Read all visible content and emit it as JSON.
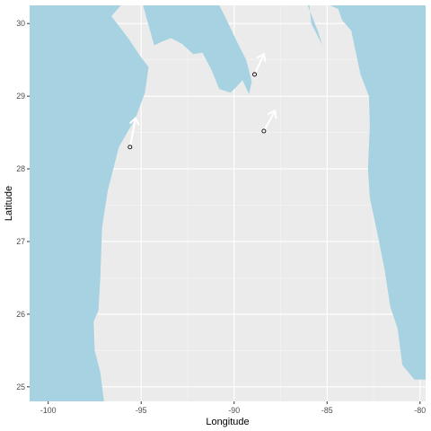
{
  "chart_data": {
    "type": "scatter",
    "title": "",
    "xlabel": "Longitude",
    "ylabel": "Latitude",
    "xlim": [
      -101,
      -79.7
    ],
    "ylim": [
      24.8,
      30.25
    ],
    "x_ticks": [
      -100,
      -95,
      -90,
      -85,
      -80
    ],
    "y_ticks": [
      25,
      26,
      27,
      28,
      29,
      30
    ],
    "x_tick_labels": [
      "-100",
      "-95",
      "-90",
      "-85",
      "-80"
    ],
    "y_tick_labels": [
      "25",
      "26",
      "27",
      "28",
      "29",
      "30"
    ],
    "grid": true,
    "legend": "none",
    "series": [
      {
        "points": [
          {
            "lon": -95.6,
            "lat": 28.3
          },
          {
            "lon": -88.9,
            "lat": 29.3
          },
          {
            "lon": -88.4,
            "lat": 28.52
          }
        ],
        "vectors": [
          {
            "lon_end": -95.3,
            "lat_end": 28.7
          },
          {
            "lon_end": -88.4,
            "lat_end": 29.58
          },
          {
            "lon_end": -87.8,
            "lat_end": 28.8
          }
        ]
      }
    ],
    "land_regions": [
      [
        [
          -101.0,
          30.25
        ],
        [
          -96.1,
          30.25
        ],
        [
          -96.6,
          30.1
        ],
        [
          -95.7,
          29.8
        ],
        [
          -95.05,
          29.55
        ],
        [
          -94.6,
          29.4
        ],
        [
          -94.8,
          29.05
        ],
        [
          -95.3,
          28.7
        ],
        [
          -96.2,
          28.3
        ],
        [
          -96.8,
          27.7
        ],
        [
          -97.1,
          27.2
        ],
        [
          -97.2,
          26.5
        ],
        [
          -97.3,
          26.05
        ],
        [
          -97.55,
          25.9
        ],
        [
          -97.5,
          25.5
        ],
        [
          -97.2,
          25.2
        ],
        [
          -97.0,
          24.8
        ],
        [
          -101.0,
          24.8
        ]
      ],
      [
        [
          -94.9,
          30.25
        ],
        [
          -90.8,
          30.25
        ],
        [
          -90.5,
          30.1
        ],
        [
          -89.85,
          29.75
        ],
        [
          -89.35,
          29.5
        ],
        [
          -89.05,
          29.2
        ],
        [
          -89.2,
          29.03
        ],
        [
          -89.55,
          29.22
        ],
        [
          -89.9,
          29.12
        ],
        [
          -90.2,
          29.05
        ],
        [
          -90.8,
          29.1
        ],
        [
          -91.2,
          29.35
        ],
        [
          -91.7,
          29.6
        ],
        [
          -92.2,
          29.58
        ],
        [
          -92.8,
          29.72
        ],
        [
          -93.4,
          29.8
        ],
        [
          -93.9,
          29.75
        ],
        [
          -94.3,
          29.7
        ]
      ],
      [
        [
          -89.6,
          30.25
        ],
        [
          -85.95,
          30.25
        ],
        [
          -85.85,
          30.0
        ],
        [
          -85.25,
          29.7
        ],
        [
          -85.5,
          29.9
        ],
        [
          -86.2,
          30.35
        ],
        [
          -87.3,
          30.35
        ],
        [
          -88.0,
          30.4
        ],
        [
          -88.5,
          30.38
        ],
        [
          -89.3,
          30.32
        ]
      ],
      [
        [
          -84.85,
          30.25
        ],
        [
          -79.7,
          30.25
        ],
        [
          -79.7,
          25.1
        ],
        [
          -80.3,
          25.1
        ],
        [
          -80.95,
          25.3
        ],
        [
          -81.2,
          25.8
        ],
        [
          -81.6,
          26.1
        ],
        [
          -81.9,
          26.6
        ],
        [
          -82.2,
          27.0
        ],
        [
          -82.7,
          27.6
        ],
        [
          -82.8,
          28.0
        ],
        [
          -82.7,
          28.6
        ],
        [
          -82.75,
          29.0
        ],
        [
          -83.2,
          29.3
        ],
        [
          -83.7,
          29.9
        ],
        [
          -84.2,
          30.05
        ],
        [
          -84.4,
          30.2
        ]
      ]
    ]
  }
}
